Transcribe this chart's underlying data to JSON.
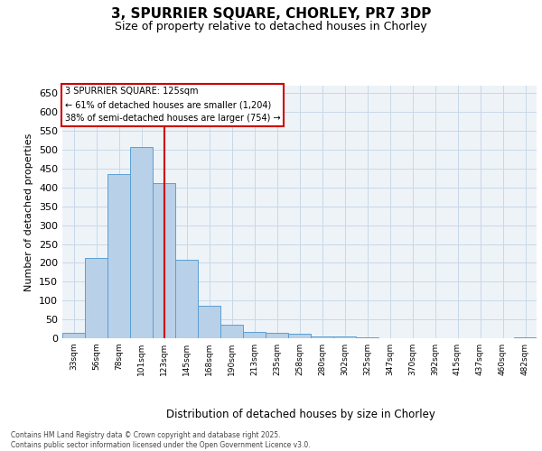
{
  "title1": "3, SPURRIER SQUARE, CHORLEY, PR7 3DP",
  "title2": "Size of property relative to detached houses in Chorley",
  "xlabel": "Distribution of detached houses by size in Chorley",
  "ylabel": "Number of detached properties",
  "categories": [
    "33sqm",
    "56sqm",
    "78sqm",
    "101sqm",
    "123sqm",
    "145sqm",
    "168sqm",
    "190sqm",
    "213sqm",
    "235sqm",
    "258sqm",
    "280sqm",
    "302sqm",
    "325sqm",
    "347sqm",
    "370sqm",
    "392sqm",
    "415sqm",
    "437sqm",
    "460sqm",
    "482sqm"
  ],
  "values": [
    15,
    213,
    435,
    507,
    412,
    207,
    85,
    37,
    17,
    15,
    11,
    5,
    5,
    2,
    1,
    1,
    1,
    0,
    0,
    0,
    3
  ],
  "bar_color": "#b8d0e8",
  "bar_edge_color": "#5a9fd4",
  "grid_color": "#c8d8e8",
  "background_color": "#eef3f8",
  "vline_x_index": 4,
  "vline_color": "#cc0000",
  "annotation_line1": "3 SPURRIER SQUARE: 125sqm",
  "annotation_line2": "← 61% of detached houses are smaller (1,204)",
  "annotation_line3": "38% of semi-detached houses are larger (754) →",
  "annotation_box_edgecolor": "#cc0000",
  "footer": "Contains HM Land Registry data © Crown copyright and database right 2025.\nContains public sector information licensed under the Open Government Licence v3.0.",
  "ylim_max": 670,
  "yticks": [
    0,
    50,
    100,
    150,
    200,
    250,
    300,
    350,
    400,
    450,
    500,
    550,
    600,
    650
  ],
  "fig_width": 6.0,
  "fig_height": 5.0,
  "dpi": 100
}
